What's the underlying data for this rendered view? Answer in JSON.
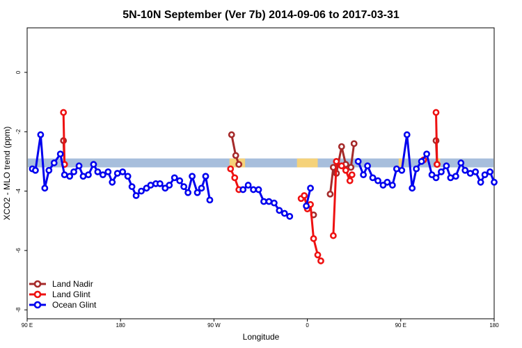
{
  "chart_data": {
    "type": "line",
    "title": "5N-10N September (Ver 7b)   2014-09-06 to 2017-03-31",
    "xlabel": "Longitude",
    "ylabel": "XCO2 - MLO trend (ppm)",
    "x_ticks": [
      {
        "value": 90,
        "label": "90 E"
      },
      {
        "value": 180,
        "label": "180"
      },
      {
        "value": 270,
        "label": "90 W"
      },
      {
        "value": 360,
        "label": "0"
      },
      {
        "value": 450,
        "label": "90 E"
      },
      {
        "value": 540,
        "label": "180"
      }
    ],
    "y_ticks": [
      {
        "value": 0,
        "label": "0"
      },
      {
        "value": -2,
        "label": "-2"
      },
      {
        "value": -4,
        "label": "-4"
      },
      {
        "value": -6,
        "label": "-6"
      },
      {
        "value": -8,
        "label": "-8"
      }
    ],
    "xlim": [
      90,
      540
    ],
    "ylim": [
      -8.3,
      1.5
    ],
    "grid": false,
    "legend_position": "bottom-left",
    "background_band": {
      "y_range": [
        -3.2,
        -2.9
      ],
      "ocean_color": "#a7bedc",
      "land_color": "#f5d27a",
      "land_segments": [
        [
          285,
          300
        ],
        [
          350,
          370
        ],
        [
          448,
          452
        ],
        [
          485,
          488
        ]
      ]
    },
    "series": [
      {
        "name": "Land Nadir",
        "color": "#a52a2a",
        "segments": [
          [
            [
              125,
              -2.3
            ],
            [
              126,
              -3.1
            ]
          ],
          [
            [
              287,
              -2.1
            ],
            [
              291,
              -2.8
            ],
            [
              294,
              -3.1
            ]
          ],
          [
            [
              366,
              -4.8
            ]
          ],
          [
            [
              382,
              -4.1
            ],
            [
              385,
              -3.2
            ],
            [
              388,
              -3.4
            ],
            [
              393,
              -2.5
            ],
            [
              397,
              -3.1
            ],
            [
              402,
              -3.2
            ],
            [
              405,
              -2.4
            ]
          ],
          [
            [
              484,
              -2.3
            ],
            [
              485,
              -3.1
            ]
          ]
        ]
      },
      {
        "name": "Land Glint",
        "color": "#ee1111",
        "segments": [
          [
            [
              125,
              -1.35
            ],
            [
              126,
              -3.1
            ]
          ],
          [
            [
              286,
              -3.25
            ],
            [
              290,
              -3.55
            ],
            [
              294,
              -3.95
            ]
          ],
          [
            [
              354,
              -4.25
            ],
            [
              357,
              -4.15
            ],
            [
              360,
              -4.6
            ],
            [
              363,
              -4.45
            ],
            [
              366,
              -5.6
            ],
            [
              370,
              -6.15
            ],
            [
              373,
              -6.35
            ]
          ],
          [
            [
              385,
              -5.5
            ],
            [
              388,
              -3.0
            ],
            [
              393,
              -3.15
            ],
            [
              397,
              -3.3
            ],
            [
              401,
              -3.65
            ],
            [
              403,
              -3.45
            ]
          ],
          [
            [
              472,
              -2.95
            ]
          ],
          [
            [
              484,
              -1.35
            ],
            [
              485,
              -3.1
            ]
          ]
        ]
      },
      {
        "name": "Ocean Glint",
        "color": "#0000ee",
        "segments": [
          [
            [
              95,
              -3.25
            ],
            [
              98,
              -3.3
            ],
            [
              103,
              -2.1
            ],
            [
              107,
              -3.9
            ],
            [
              111,
              -3.3
            ],
            [
              116,
              -3.05
            ],
            [
              122,
              -2.75
            ],
            [
              126,
              -3.45
            ],
            [
              131,
              -3.5
            ],
            [
              135,
              -3.35
            ],
            [
              140,
              -3.15
            ],
            [
              144,
              -3.5
            ],
            [
              149,
              -3.45
            ],
            [
              154,
              -3.1
            ],
            [
              158,
              -3.35
            ],
            [
              163,
              -3.45
            ],
            [
              168,
              -3.35
            ],
            [
              172,
              -3.7
            ],
            [
              177,
              -3.4
            ],
            [
              182,
              -3.35
            ],
            [
              187,
              -3.5
            ],
            [
              191,
              -3.85
            ],
            [
              195,
              -4.15
            ],
            [
              200,
              -4.0
            ],
            [
              205,
              -3.9
            ],
            [
              209,
              -3.8
            ],
            [
              214,
              -3.75
            ],
            [
              218,
              -3.75
            ],
            [
              223,
              -3.9
            ],
            [
              227,
              -3.8
            ],
            [
              232,
              -3.55
            ],
            [
              237,
              -3.65
            ],
            [
              241,
              -3.85
            ],
            [
              245,
              -4.05
            ],
            [
              249,
              -3.5
            ],
            [
              254,
              -4.05
            ],
            [
              258,
              -3.9
            ],
            [
              262,
              -3.5
            ],
            [
              266,
              -4.3
            ]
          ],
          [
            [
              298,
              -3.95
            ],
            [
              303,
              -3.8
            ],
            [
              308,
              -3.95
            ],
            [
              313,
              -3.95
            ],
            [
              318,
              -4.35
            ],
            [
              323,
              -4.35
            ],
            [
              328,
              -4.4
            ],
            [
              333,
              -4.65
            ],
            [
              338,
              -4.75
            ],
            [
              343,
              -4.85
            ]
          ],
          [
            [
              359,
              -4.5
            ],
            [
              363,
              -3.9
            ]
          ],
          [
            [
              409,
              -3.0
            ],
            [
              414,
              -3.45
            ],
            [
              418,
              -3.15
            ],
            [
              423,
              -3.55
            ],
            [
              428,
              -3.65
            ],
            [
              433,
              -3.8
            ],
            [
              437,
              -3.7
            ],
            [
              442,
              -3.8
            ],
            [
              446,
              -3.25
            ],
            [
              451,
              -3.3
            ],
            [
              456,
              -2.1
            ],
            [
              461,
              -3.9
            ],
            [
              465,
              -3.25
            ],
            [
              470,
              -3.0
            ],
            [
              475,
              -2.75
            ],
            [
              480,
              -3.45
            ],
            [
              484,
              -3.55
            ],
            [
              489,
              -3.35
            ],
            [
              494,
              -3.15
            ],
            [
              498,
              -3.55
            ],
            [
              503,
              -3.5
            ],
            [
              508,
              -3.05
            ],
            [
              512,
              -3.3
            ],
            [
              517,
              -3.4
            ],
            [
              522,
              -3.35
            ],
            [
              527,
              -3.7
            ],
            [
              531,
              -3.45
            ],
            [
              536,
              -3.35
            ],
            [
              540,
              -3.7
            ]
          ]
        ]
      }
    ]
  }
}
